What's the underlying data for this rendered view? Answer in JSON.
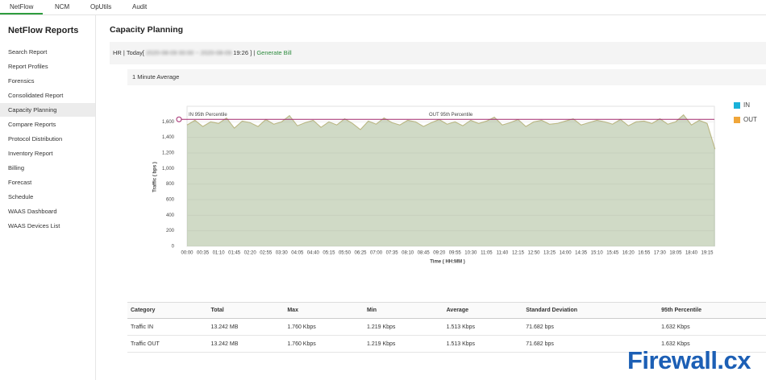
{
  "tabs": [
    "NetFlow",
    "NCM",
    "OpUtils",
    "Audit"
  ],
  "sidebar": {
    "title": "NetFlow Reports",
    "items": [
      "Search Report",
      "Report Profiles",
      "Forensics",
      "Consolidated Report",
      "Capacity Planning",
      "Compare Reports",
      "Protocol Distribution",
      "Inventory Report",
      "Billing",
      "Forecast",
      "Schedule",
      "WAAS Dashboard",
      "WAAS Devices List"
    ]
  },
  "page_title": "Capacity Planning",
  "filter": {
    "prefix": "HR | Today[",
    "blurred": "2020-08-09 00:00 ~ 2020-08-09",
    "suffix": "19:26 ] |",
    "link": "Generate Bill"
  },
  "panel_title": "1 Minute Average",
  "chart_data": {
    "type": "area",
    "x_label": "Time ( HH:MM )",
    "y_label": "Traffic ( bps )",
    "categories": [
      "00:00",
      null,
      "00:35",
      null,
      "01:10",
      null,
      "01:45",
      null,
      "02:20",
      null,
      "02:55",
      null,
      "03:30",
      null,
      "04:05",
      null,
      "04:40",
      null,
      "05:15",
      null,
      "05:50",
      null,
      "06:25",
      null,
      "07:00",
      null,
      "07:35",
      null,
      "08:10",
      null,
      "08:45",
      null,
      "09:20",
      null,
      "09:55",
      null,
      "10:30",
      null,
      "11:05",
      null,
      "11:40",
      null,
      "12:15",
      null,
      "12:50",
      null,
      "13:25",
      null,
      "14:00",
      null,
      "14:35",
      null,
      "15:10",
      null,
      "15:45",
      null,
      "16:20",
      null,
      "16:55",
      null,
      "17:30",
      null,
      "18:05",
      null,
      "18:40",
      null,
      "19:15",
      null
    ],
    "series": [
      {
        "name": "IN",
        "color": "#1ab1d9",
        "values": [
          1560,
          1620,
          1540,
          1600,
          1580,
          1650,
          1520,
          1610,
          1590,
          1540,
          1630,
          1570,
          1600,
          1680,
          1550,
          1590,
          1620,
          1530,
          1600,
          1560,
          1640,
          1580,
          1500,
          1610,
          1570,
          1650,
          1590,
          1560,
          1620,
          1600,
          1540,
          1590,
          1630,
          1570,
          1600,
          1550,
          1620,
          1580,
          1610,
          1660,
          1560,
          1590,
          1630,
          1540,
          1600,
          1620,
          1570,
          1580,
          1610,
          1640,
          1560,
          1590,
          1620,
          1600,
          1570,
          1630,
          1550,
          1600,
          1610,
          1580,
          1640,
          1570,
          1600,
          1690,
          1560,
          1620,
          1580,
          1250
        ]
      },
      {
        "name": "OUT",
        "color": "#f0a63a",
        "values": [
          1560,
          1620,
          1540,
          1600,
          1580,
          1650,
          1520,
          1610,
          1590,
          1540,
          1630,
          1570,
          1600,
          1680,
          1550,
          1590,
          1620,
          1530,
          1600,
          1560,
          1640,
          1580,
          1500,
          1610,
          1570,
          1650,
          1590,
          1560,
          1620,
          1600,
          1540,
          1590,
          1630,
          1570,
          1600,
          1550,
          1620,
          1580,
          1610,
          1660,
          1560,
          1590,
          1630,
          1540,
          1600,
          1620,
          1570,
          1580,
          1610,
          1640,
          1560,
          1590,
          1620,
          1600,
          1570,
          1630,
          1550,
          1600,
          1610,
          1580,
          1640,
          1570,
          1600,
          1690,
          1560,
          1620,
          1580,
          1250
        ]
      }
    ],
    "percentile_lines": [
      {
        "label": "IN 95th Percentile",
        "value": 1632
      },
      {
        "label": "OUT 95th Percentile",
        "value": 1632
      }
    ],
    "percentile_color": "#a3296e",
    "ylim": [
      0,
      1800
    ],
    "yticks": [
      0,
      200,
      400,
      600,
      800,
      {
        "value": 1000,
        "label": "1,000"
      },
      {
        "value": 1200,
        "label": "1,200"
      },
      {
        "value": 1400,
        "label": "1,400"
      },
      {
        "value": 1600,
        "label": "1,600"
      }
    ],
    "grid": true,
    "legend": "right"
  },
  "table": {
    "headers": [
      "Category",
      "Total",
      "Max",
      "Min",
      "Average",
      "Standard Deviation",
      "95th Percentile"
    ],
    "rows": [
      [
        "Traffic IN",
        "13.242 MB",
        "1.760 Kbps",
        "1.219 Kbps",
        "1.513 Kbps",
        "71.682 bps",
        "1.632 Kbps"
      ],
      [
        "Traffic OUT",
        "13.242 MB",
        "1.760 Kbps",
        "1.219 Kbps",
        "1.513 Kbps",
        "71.682 bps",
        "1.632 Kbps"
      ]
    ]
  },
  "watermark": "Firewall.cx"
}
